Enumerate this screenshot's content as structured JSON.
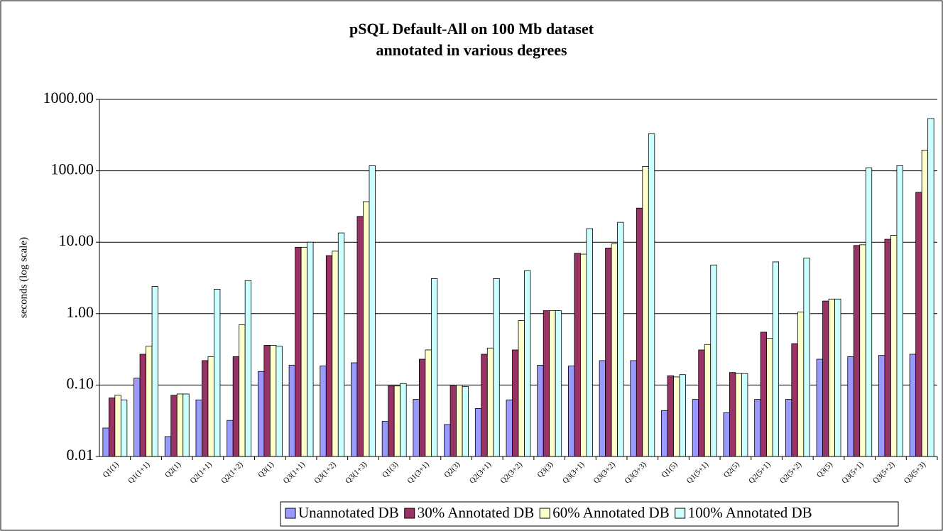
{
  "chart_data": {
    "type": "bar",
    "title": [
      "pSQL Default-All on 100 Mb dataset",
      "annotated in various degrees"
    ],
    "y_label": "seconds (log scale)",
    "log_scale": true,
    "grid": true,
    "legend": "bottom",
    "categories": [
      "Q1(1)",
      "Q1(1+1)",
      "Q2(1)",
      "Q2(1+1)",
      "Q2(1+2)",
      "Q3(1)",
      "Q3(1+1)",
      "Q3(1+2)",
      "Q3(1+3)",
      "Q1(3)",
      "Q1(3+1)",
      "Q2(3)",
      "Q2(3+1)",
      "Q2(3+2)",
      "Q3(3)",
      "Q3(3+1)",
      "Q3(3+2)",
      "Q3(3+3)",
      "Q1(5)",
      "Q1(5+1)",
      "Q2(5)",
      "Q2(5+1)",
      "Q2(5+2)",
      "Q3(5)",
      "Q3(5+1)",
      "Q3(5+2)",
      "Q3(5+3)"
    ],
    "series": [
      {
        "name": "Unannotated DB",
        "color": "#9999ff",
        "values": [
          0.025,
          0.125,
          0.019,
          0.062,
          0.032,
          0.155,
          0.19,
          0.185,
          0.205,
          0.031,
          0.063,
          0.028,
          0.047,
          0.062,
          0.19,
          0.185,
          0.22,
          0.22,
          0.044,
          0.063,
          0.041,
          0.063,
          0.063,
          0.23,
          0.25,
          0.26,
          0.27
        ]
      },
      {
        "name": "30% Annotated DB",
        "color": "#993366",
        "values": [
          0.066,
          0.27,
          0.072,
          0.22,
          0.25,
          0.36,
          8.5,
          6.5,
          23,
          0.097,
          0.23,
          0.1,
          0.27,
          0.31,
          1.1,
          7.0,
          8.3,
          30,
          0.135,
          0.31,
          0.15,
          0.55,
          0.38,
          1.5,
          9.0,
          11,
          50
        ]
      },
      {
        "name": "60% Annotated DB",
        "color": "#ffffcc",
        "values": [
          0.072,
          0.35,
          0.075,
          0.25,
          0.7,
          0.36,
          8.5,
          7.5,
          37,
          0.097,
          0.31,
          0.1,
          0.33,
          0.8,
          1.1,
          6.8,
          9.5,
          115,
          0.13,
          0.37,
          0.145,
          0.45,
          1.05,
          1.6,
          9.2,
          12.5,
          195
        ]
      },
      {
        "name": "100% Annotated DB",
        "color": "#ccffff",
        "values": [
          0.062,
          2.4,
          0.075,
          2.2,
          2.9,
          0.35,
          10,
          13.5,
          118,
          0.105,
          3.1,
          0.095,
          3.1,
          4.0,
          1.1,
          15.5,
          19,
          330,
          0.14,
          4.8,
          0.145,
          5.3,
          6.0,
          1.6,
          110,
          118,
          540
        ]
      }
    ],
    "ylim": [
      0.01,
      1000
    ],
    "yticks": [
      0.01,
      {
        "value": 0.1,
        "label": "0.10"
      },
      {
        "value": 1,
        "label": "1.00"
      },
      {
        "value": 10,
        "label": "10.00"
      },
      {
        "value": 100,
        "label": "100.00"
      },
      {
        "value": 1000,
        "label": "1000.00"
      }
    ]
  }
}
